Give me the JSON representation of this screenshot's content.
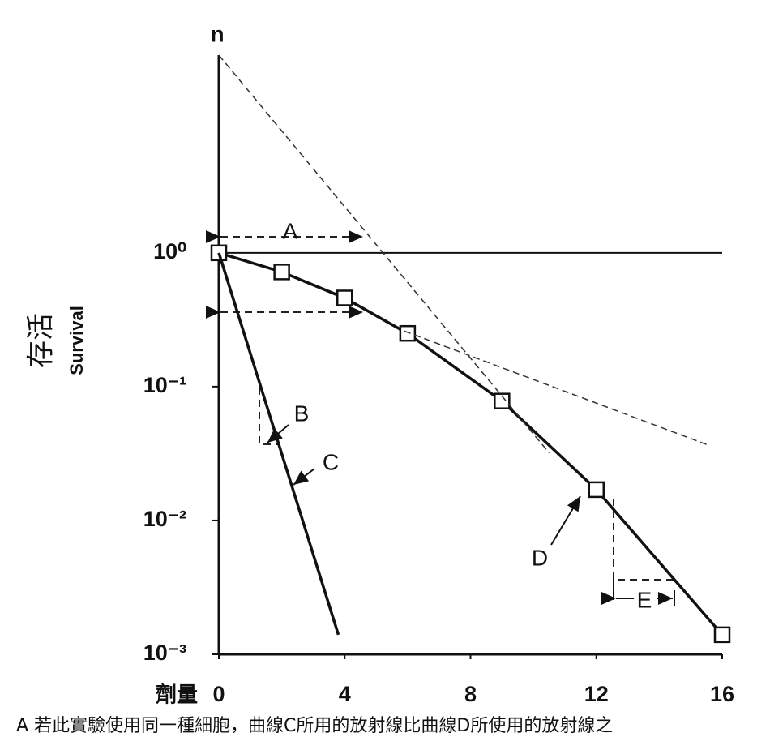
{
  "chart_data": {
    "type": "line",
    "log_y": true,
    "y_axis_top_label": "n",
    "y_label_zh": "存活",
    "y_label": "Survival",
    "x_label": "劑量",
    "xlim": [
      0,
      16
    ],
    "xticks": [
      0,
      4,
      8,
      12,
      16
    ],
    "ylim": [
      0.001,
      30
    ],
    "yticks": [
      {
        "value": 1,
        "label": "10⁰"
      },
      {
        "value": 0.1,
        "label": "10⁻¹"
      },
      {
        "value": 0.01,
        "label": "10⁻²"
      },
      {
        "value": 0.001,
        "label": "10⁻³"
      }
    ],
    "reference_lines": [
      1
    ],
    "series": [
      {
        "x": [
          0,
          2,
          4,
          6,
          9,
          12,
          16
        ],
        "values": [
          1,
          0.72,
          0.46,
          0.25,
          0.078,
          0.017,
          0.0014
        ],
        "color": "#111",
        "style": "solid",
        "marker": "square"
      },
      {
        "x": [
          0,
          3.8
        ],
        "values": [
          1,
          0.0014
        ],
        "color": "#111",
        "style": "solid",
        "marker": "none"
      },
      {
        "x": [
          0,
          10.5
        ],
        "values": [
          30,
          0.032
        ],
        "color": "#333",
        "style": "dashed",
        "marker": "none"
      },
      {
        "x": [
          5.9,
          15.5
        ],
        "values": [
          0.26,
          0.037
        ],
        "color": "#333",
        "style": "dashed",
        "marker": "none"
      }
    ],
    "annotations": [
      "A",
      "B",
      "C",
      "D",
      "E"
    ]
  },
  "caption": "A 若此實驗使用同一種細胞，曲線C所用的放射線比曲線D所使用的放射線之"
}
